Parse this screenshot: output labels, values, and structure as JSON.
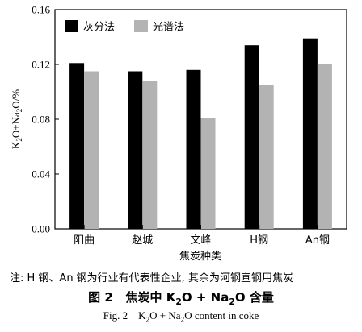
{
  "chart_data": {
    "type": "bar",
    "categories": [
      "阳曲",
      "赵城",
      "文峰",
      "H钢",
      "An钢"
    ],
    "series": [
      {
        "name": "灰分法",
        "color": "#000000",
        "values": [
          0.121,
          0.115,
          0.116,
          0.134,
          0.139
        ]
      },
      {
        "name": "光谱法",
        "color": "#b3b3b3",
        "values": [
          0.115,
          0.108,
          0.081,
          0.105,
          0.12
        ]
      }
    ],
    "ylim": [
      0,
      0.16
    ],
    "yticks": [
      "0.00",
      "0.04",
      "0.08",
      "0.12",
      "0.16"
    ],
    "ytick_values": [
      0,
      0.04,
      0.08,
      0.12,
      0.16
    ],
    "ylabel": {
      "pre": "K",
      "sub1": "2",
      "mid": "O+Na",
      "sub2": "2",
      "post": "O/%"
    },
    "xlabel": "焦炭种类",
    "legend_position": "top-left"
  },
  "note": "注: H 钢、An 钢为行业有代表性企业, 其余为河钢宣钢用焦炭",
  "caption_cn": {
    "num": "图 2",
    "a": "焦炭中 K",
    "sub1": "2",
    "b": "O + Na",
    "sub2": "2",
    "c": "O 含量"
  },
  "caption_en": {
    "num": "Fig. 2",
    "a": "K",
    "sub1": "2",
    "b": "O + Na",
    "sub2": "2",
    "c": "O content in coke"
  }
}
